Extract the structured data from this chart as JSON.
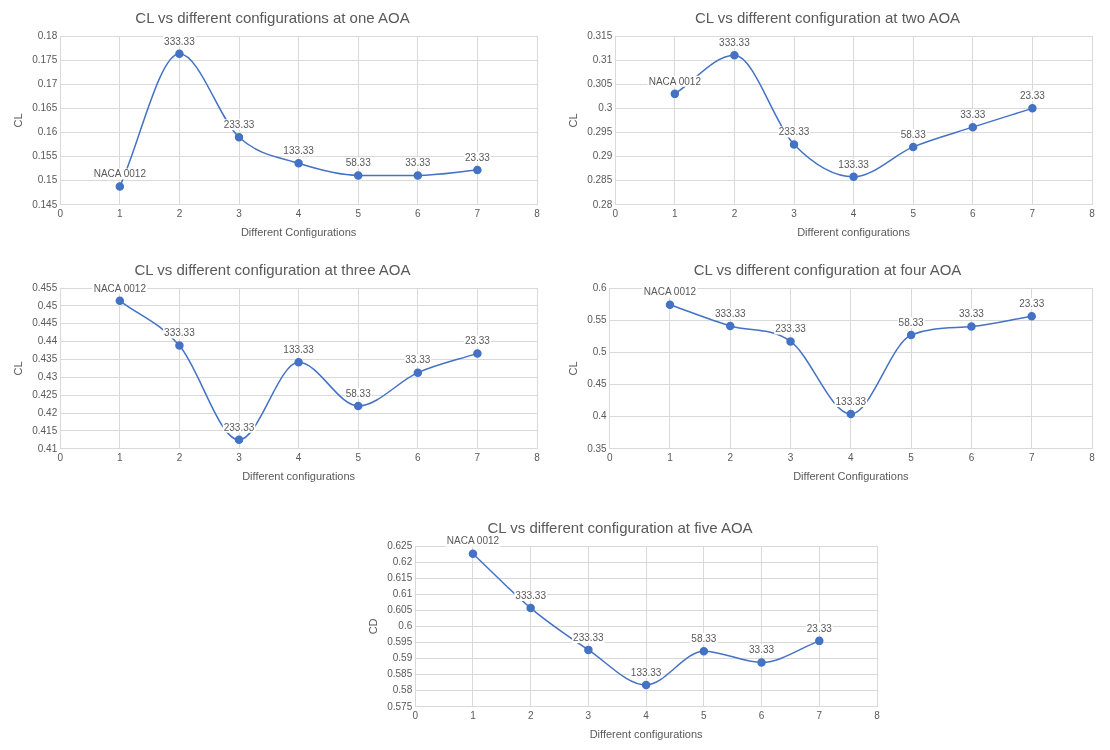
{
  "chart_data": [
    {
      "type": "line",
      "title": "CL vs different configurations at one AOA",
      "xlabel": "Different Configurations",
      "ylabel": "CL",
      "x": [
        1,
        2,
        3,
        4,
        5,
        6,
        7
      ],
      "series": [
        {
          "color": "#4472c4",
          "values": [
            0.1488,
            0.1763,
            0.159,
            0.1536,
            0.1511,
            0.1511,
            0.1522
          ]
        }
      ],
      "xlim": [
        0,
        8
      ],
      "xticks": [
        0,
        1,
        2,
        3,
        4,
        5,
        6,
        7,
        8
      ],
      "ylim": [
        0.145,
        0.18
      ],
      "yticks": [
        0.145,
        0.15,
        0.155,
        0.16,
        0.165,
        0.17,
        0.175,
        0.18
      ],
      "grid": true,
      "legend": false,
      "marker": "circle",
      "line_style": "solid",
      "annotations": [
        {
          "text": "NACA 0012",
          "x": 1,
          "y": 0.1488
        },
        {
          "text": "333.33",
          "x": 2,
          "y": 0.1763
        },
        {
          "text": "233.33",
          "x": 3,
          "y": 0.159
        },
        {
          "text": "133.33",
          "x": 4,
          "y": 0.1536
        },
        {
          "text": "58.33",
          "x": 5,
          "y": 0.1511
        },
        {
          "text": "33.33",
          "x": 6,
          "y": 0.1511
        },
        {
          "text": "23.33",
          "x": 7,
          "y": 0.1522
        }
      ]
    },
    {
      "type": "line",
      "title": "CL vs different configuration at two AOA",
      "xlabel": "Different configurations",
      "ylabel": "CL",
      "x": [
        1,
        2,
        3,
        4,
        5,
        6,
        7
      ],
      "series": [
        {
          "color": "#4472c4",
          "values": [
            0.303,
            0.311,
            0.2925,
            0.2858,
            0.292,
            0.2961,
            0.3
          ]
        }
      ],
      "xlim": [
        0,
        8
      ],
      "xticks": [
        0,
        1,
        2,
        3,
        4,
        5,
        6,
        7,
        8
      ],
      "ylim": [
        0.28,
        0.315
      ],
      "yticks": [
        0.28,
        0.285,
        0.29,
        0.295,
        0.3,
        0.305,
        0.31,
        0.315
      ],
      "grid": true,
      "legend": false,
      "marker": "circle",
      "line_style": "solid",
      "annotations": [
        {
          "text": "NACA 0012",
          "x": 1,
          "y": 0.303
        },
        {
          "text": "333.33",
          "x": 2,
          "y": 0.311
        },
        {
          "text": "233.33",
          "x": 3,
          "y": 0.2925
        },
        {
          "text": "133.33",
          "x": 4,
          "y": 0.2858
        },
        {
          "text": "58.33",
          "x": 5,
          "y": 0.292
        },
        {
          "text": "33.33",
          "x": 6,
          "y": 0.2961
        },
        {
          "text": "23.33",
          "x": 7,
          "y": 0.3
        }
      ]
    },
    {
      "type": "line",
      "title": "CL vs different configuration at three AOA",
      "xlabel": "Different configurations",
      "ylabel": "CL",
      "x": [
        1,
        2,
        3,
        4,
        5,
        6,
        7
      ],
      "series": [
        {
          "color": "#4472c4",
          "values": [
            0.4514,
            0.4389,
            0.4125,
            0.4342,
            0.422,
            0.4313,
            0.4367
          ]
        }
      ],
      "xlim": [
        0,
        8
      ],
      "xticks": [
        0,
        1,
        2,
        3,
        4,
        5,
        6,
        7,
        8
      ],
      "ylim": [
        0.41,
        0.455
      ],
      "yticks": [
        0.41,
        0.415,
        0.42,
        0.425,
        0.43,
        0.435,
        0.44,
        0.445,
        0.45,
        0.455
      ],
      "grid": true,
      "legend": false,
      "marker": "circle",
      "line_style": "solid",
      "annotations": [
        {
          "text": "NACA 0012",
          "x": 1,
          "y": 0.4514
        },
        {
          "text": "333.33",
          "x": 2,
          "y": 0.4389
        },
        {
          "text": "233.33",
          "x": 3,
          "y": 0.4125
        },
        {
          "text": "133.33",
          "x": 4,
          "y": 0.4342
        },
        {
          "text": "58.33",
          "x": 5,
          "y": 0.422
        },
        {
          "text": "33.33",
          "x": 6,
          "y": 0.4313
        },
        {
          "text": "23.33",
          "x": 7,
          "y": 0.4367
        }
      ]
    },
    {
      "type": "line",
      "title": "CL vs different configuration at four AOA",
      "xlabel": "Different Configurations",
      "ylabel": "CL",
      "x": [
        1,
        2,
        3,
        4,
        5,
        6,
        7
      ],
      "series": [
        {
          "color": "#4472c4",
          "values": [
            0.574,
            0.541,
            0.517,
            0.404,
            0.527,
            0.54,
            0.556
          ]
        }
      ],
      "xlim": [
        0,
        8
      ],
      "xticks": [
        0,
        1,
        2,
        3,
        4,
        5,
        6,
        7,
        8
      ],
      "ylim": [
        0.35,
        0.6
      ],
      "yticks": [
        0.35,
        0.4,
        0.45,
        0.5,
        0.55,
        0.6
      ],
      "grid": true,
      "legend": false,
      "marker": "circle",
      "line_style": "solid",
      "annotations": [
        {
          "text": "NACA 0012",
          "x": 1,
          "y": 0.574
        },
        {
          "text": "333.33",
          "x": 2,
          "y": 0.541
        },
        {
          "text": "233.33",
          "x": 3,
          "y": 0.517
        },
        {
          "text": "133.33",
          "x": 4,
          "y": 0.404
        },
        {
          "text": "58.33",
          "x": 5,
          "y": 0.527
        },
        {
          "text": "33.33",
          "x": 6,
          "y": 0.54
        },
        {
          "text": "23.33",
          "x": 7,
          "y": 0.556
        }
      ]
    },
    {
      "type": "line",
      "title": "CL vs different configuration at five AOA",
      "xlabel": "Different configurations",
      "ylabel": "CD",
      "x": [
        1,
        2,
        3,
        4,
        5,
        6,
        7
      ],
      "series": [
        {
          "color": "#4472c4",
          "values": [
            0.6226,
            0.6057,
            0.5927,
            0.5818,
            0.5923,
            0.5888,
            0.5955
          ]
        }
      ],
      "xlim": [
        0,
        8
      ],
      "xticks": [
        0,
        1,
        2,
        3,
        4,
        5,
        6,
        7,
        8
      ],
      "ylim": [
        0.575,
        0.625
      ],
      "yticks": [
        0.575,
        0.58,
        0.585,
        0.59,
        0.595,
        0.6,
        0.605,
        0.61,
        0.615,
        0.62,
        0.625
      ],
      "grid": true,
      "legend": false,
      "marker": "circle",
      "line_style": "solid",
      "annotations": [
        {
          "text": "NACA 0012",
          "x": 1,
          "y": 0.6226
        },
        {
          "text": "333.33",
          "x": 2,
          "y": 0.6057
        },
        {
          "text": "233.33",
          "x": 3,
          "y": 0.5927
        },
        {
          "text": "133.33",
          "x": 4,
          "y": 0.5818
        },
        {
          "text": "58.33",
          "x": 5,
          "y": 0.5923
        },
        {
          "text": "33.33",
          "x": 6,
          "y": 0.5888
        },
        {
          "text": "23.33",
          "x": 7,
          "y": 0.5955
        }
      ]
    }
  ]
}
